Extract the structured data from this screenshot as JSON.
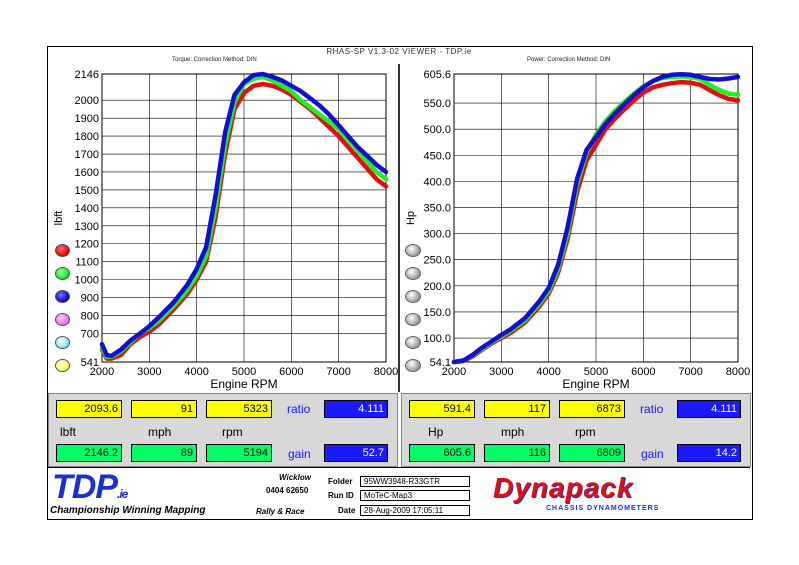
{
  "window": {
    "title": "RHAS-SP V1.3-02 VIEWER - TDP.ie"
  },
  "left_panel": {
    "header": "Torque:      Correction Method: DIN"
  },
  "right_panel": {
    "header": "Power:      Correction Method: DIN"
  },
  "colors": {
    "red": "#e01010",
    "green": "#22ee22",
    "blue": "#1010d0",
    "pink": "#ee77ee",
    "cyan": "#88eeff",
    "yellow": "#ffff66"
  },
  "chart_data": [
    {
      "type": "line",
      "xlabel": "Engine RPM",
      "ylabel": "lbft",
      "xlim": [
        2000,
        8000
      ],
      "ylim": [
        541,
        2146
      ],
      "x_ticks": [
        "2000",
        "3000",
        "4000",
        "5000",
        "6000",
        "7000",
        "8000"
      ],
      "y_ticks": [
        "2146",
        "2000",
        "1900",
        "1800",
        "1700",
        "1600",
        "1500",
        "1400",
        "1300",
        "1200",
        "1100",
        "1000",
        "900",
        "800",
        "700",
        "541"
      ],
      "grid": true,
      "series": [
        {
          "color": "red",
          "x": [
            2000,
            2100,
            2200,
            2400,
            2600,
            2800,
            3000,
            3200,
            3500,
            3800,
            4000,
            4200,
            4400,
            4600,
            4800,
            5000,
            5200,
            5400,
            5600,
            5800,
            6000,
            6200,
            6400,
            6600,
            6800,
            7000,
            7200,
            7400,
            7600,
            7800,
            8000
          ],
          "y": [
            610,
            560,
            560,
            580,
            640,
            680,
            710,
            750,
            830,
            920,
            1000,
            1100,
            1350,
            1700,
            1950,
            2040,
            2080,
            2090,
            2080,
            2060,
            2030,
            1990,
            1950,
            1900,
            1850,
            1800,
            1740,
            1680,
            1620,
            1560,
            1520
          ]
        },
        {
          "color": "green",
          "x": [
            2000,
            2100,
            2200,
            2400,
            2600,
            2800,
            3000,
            3200,
            3500,
            3800,
            4000,
            4200,
            4400,
            4600,
            4800,
            5000,
            5200,
            5400,
            5600,
            5800,
            6000,
            6200,
            6400,
            6600,
            6800,
            7000,
            7200,
            7400,
            7600,
            7800,
            8000
          ],
          "y": [
            620,
            570,
            570,
            600,
            650,
            700,
            730,
            770,
            850,
            940,
            1020,
            1130,
            1400,
            1750,
            1990,
            2090,
            2120,
            2130,
            2110,
            2080,
            2050,
            2000,
            1960,
            1920,
            1880,
            1840,
            1780,
            1720,
            1660,
            1600,
            1560
          ]
        },
        {
          "color": "blue",
          "x": [
            2000,
            2100,
            2200,
            2400,
            2600,
            2800,
            3000,
            3200,
            3500,
            3800,
            4000,
            4200,
            4400,
            4600,
            4800,
            5000,
            5200,
            5400,
            5600,
            5800,
            6000,
            6200,
            6400,
            6600,
            6800,
            7000,
            7200,
            7400,
            7600,
            7800,
            8000
          ],
          "y": [
            640,
            580,
            575,
            610,
            660,
            700,
            740,
            790,
            870,
            970,
            1060,
            1180,
            1470,
            1820,
            2030,
            2100,
            2140,
            2146,
            2130,
            2110,
            2080,
            2050,
            2010,
            1970,
            1920,
            1860,
            1800,
            1740,
            1690,
            1640,
            1600
          ]
        }
      ]
    },
    {
      "type": "line",
      "xlabel": "Engine RPM",
      "ylabel": "Hp",
      "xlim": [
        2000,
        8000
      ],
      "ylim": [
        54.1,
        605.6
      ],
      "x_ticks": [
        "2000",
        "3000",
        "4000",
        "5000",
        "6000",
        "7000",
        "8000"
      ],
      "y_ticks": [
        "605.6",
        "550.0",
        "500.0",
        "450.0",
        "400.0",
        "350.0",
        "300.0",
        "250.0",
        "200.0",
        "150.0",
        "100.0",
        "54.1"
      ],
      "grid": true,
      "series": [
        {
          "color": "red",
          "x": [
            2000,
            2200,
            2400,
            2600,
            2800,
            3000,
            3200,
            3500,
            3800,
            4000,
            4200,
            4400,
            4600,
            4800,
            5000,
            5200,
            5400,
            5600,
            5800,
            6000,
            6200,
            6400,
            6600,
            6800,
            7000,
            7200,
            7400,
            7600,
            7800,
            8000
          ],
          "y": [
            54.1,
            56,
            65,
            78,
            90,
            100,
            110,
            130,
            160,
            185,
            225,
            290,
            380,
            440,
            470,
            500,
            520,
            538,
            555,
            570,
            580,
            585,
            588,
            590,
            589,
            585,
            575,
            565,
            558,
            555
          ]
        },
        {
          "color": "green",
          "x": [
            2000,
            2200,
            2400,
            2600,
            2800,
            3000,
            3200,
            3500,
            3800,
            4000,
            4200,
            4400,
            4600,
            4800,
            5000,
            5200,
            5400,
            5600,
            5800,
            6000,
            6200,
            6400,
            6600,
            6800,
            7000,
            7200,
            7400,
            7600,
            7800,
            8000
          ],
          "y": [
            54.1,
            57,
            67,
            80,
            92,
            103,
            114,
            134,
            165,
            190,
            232,
            300,
            395,
            455,
            490,
            515,
            535,
            552,
            568,
            582,
            592,
            598,
            600,
            601,
            600,
            596,
            585,
            575,
            568,
            566
          ]
        },
        {
          "color": "blue",
          "x": [
            2000,
            2200,
            2400,
            2600,
            2800,
            3000,
            3200,
            3500,
            3800,
            4000,
            4200,
            4400,
            4600,
            4800,
            5000,
            5200,
            5400,
            5600,
            5800,
            6000,
            6200,
            6400,
            6600,
            6800,
            7000,
            7200,
            7400,
            7600,
            7800,
            8000
          ],
          "y": [
            54.1,
            57,
            68,
            82,
            94,
            106,
            117,
            138,
            170,
            196,
            240,
            312,
            405,
            460,
            485,
            510,
            530,
            548,
            565,
            580,
            592,
            600,
            604,
            605,
            604,
            600,
            596,
            595,
            597,
            600
          ]
        }
      ]
    }
  ],
  "readouts": {
    "left": {
      "row1": [
        "2093.6",
        "91",
        "5323"
      ],
      "row1_label": "ratio",
      "row1_value": "4.111",
      "units": [
        "lbft",
        "mph",
        "rpm"
      ],
      "row2": [
        "2146.2",
        "89",
        "5194"
      ],
      "row2_label": "gain",
      "row2_value": "52.7"
    },
    "right": {
      "row1": [
        "591.4",
        "117",
        "6873"
      ],
      "row1_label": "ratio",
      "row1_value": "4.111",
      "units": [
        "Hp",
        "mph",
        "rpm"
      ],
      "row2": [
        "605.6",
        "116",
        "6809"
      ],
      "row2_label": "gain",
      "row2_value": "14.2"
    }
  },
  "footer": {
    "logo": "TDP",
    "logo_suffix": ".ie",
    "tagline": "Championship Winning Mapping",
    "location": "Wicklow",
    "phone": "0404 62650",
    "rally": "Rally & Race",
    "folder_label": "Folder",
    "folder_value": "95WW3948-R33GTR",
    "runid_label": "Run ID",
    "runid_value": "MoTeC-Map3",
    "date_label": "Date",
    "date_value": "28-Aug-2009  17:05:11",
    "brand": "Dynapack",
    "brand_sub": "CHASSIS  DYNAMOMETERS"
  }
}
